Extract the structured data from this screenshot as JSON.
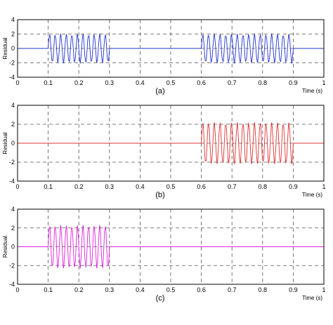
{
  "chart_data": [
    {
      "type": "line",
      "caption": "(a)",
      "xlabel": "Time (s)",
      "ylabel": "Residual",
      "xlim": [
        0,
        1
      ],
      "ylim": [
        -4,
        4
      ],
      "xticks": [
        "0",
        "0.1",
        "0.2",
        "0.3",
        "0.4",
        "0.5",
        "0.6",
        "0.7",
        "0.8",
        "0.9",
        "1"
      ],
      "yticks": [
        "4",
        "2",
        "0",
        "-2",
        "-4"
      ],
      "grid": true,
      "color": "#2233cc",
      "series": [
        {
          "baseline": 0,
          "bursts": [
            {
              "x_start": 0.1,
              "x_end": 0.3,
              "amplitude": 2.0,
              "cycles": 11
            },
            {
              "x_start": 0.6,
              "x_end": 0.9,
              "amplitude": 2.0,
              "cycles": 16
            }
          ]
        }
      ]
    },
    {
      "type": "line",
      "caption": "(b)",
      "xlabel": "Time (s)",
      "ylabel": "Residual",
      "xlim": [
        0,
        1
      ],
      "ylim": [
        -4,
        4
      ],
      "xticks": [
        "0",
        "0.1",
        "0.2",
        "0.3",
        "0.4",
        "0.5",
        "0.6",
        "0.7",
        "0.8",
        "0.9",
        "1"
      ],
      "yticks": [
        "4",
        "2",
        "0",
        "-2",
        "-4"
      ],
      "grid": true,
      "color": "#dd3333",
      "series": [
        {
          "baseline": 0,
          "bursts": [
            {
              "x_start": 0.6,
              "x_end": 0.9,
              "amplitude": 2.2,
              "cycles": 16
            }
          ]
        }
      ]
    },
    {
      "type": "line",
      "caption": "(c)",
      "xlabel": "Time (s)",
      "ylabel": "Residual",
      "xlim": [
        0,
        1
      ],
      "ylim": [
        -4,
        4
      ],
      "xticks": [
        "0",
        "0.1",
        "0.2",
        "0.3",
        "0.4",
        "0.5",
        "0.6",
        "0.7",
        "0.8",
        "0.9",
        "1"
      ],
      "yticks": [
        "4",
        "2",
        "0",
        "-2",
        "-4"
      ],
      "grid": true,
      "color": "#dd22dd",
      "series": [
        {
          "baseline": 0,
          "bursts": [
            {
              "x_start": 0.1,
              "x_end": 0.3,
              "amplitude": 2.3,
              "cycles": 11
            }
          ]
        }
      ]
    }
  ]
}
